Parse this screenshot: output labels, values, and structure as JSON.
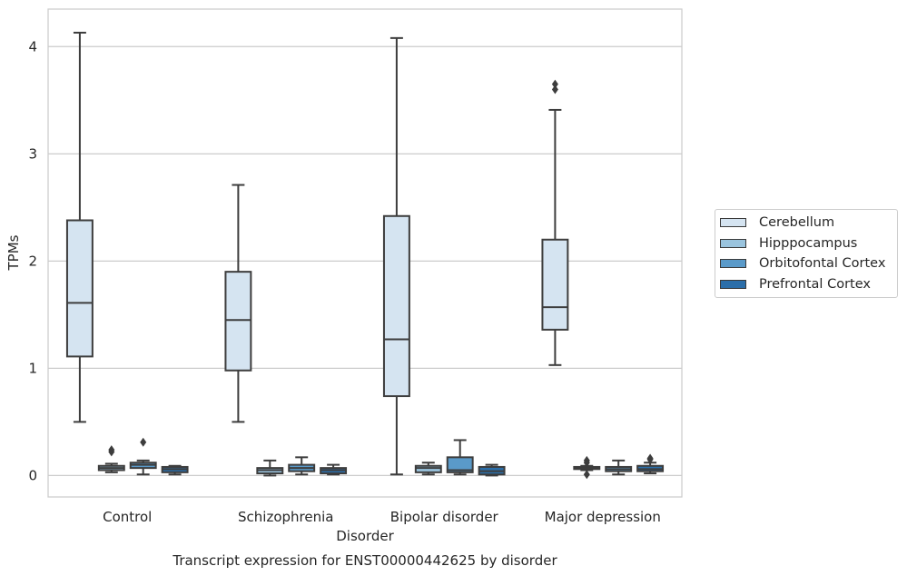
{
  "chart_data": {
    "type": "box",
    "title": "Transcript expression for ENST00000442625 by disorder",
    "xlabel": "Disorder",
    "ylabel": "TPMs",
    "categories": [
      "Control",
      "Schizophrenia",
      "Bipolar disorder",
      "Major depression"
    ],
    "ylim": [
      -0.2,
      4.35
    ],
    "yticks": [
      "0",
      "1",
      "2",
      "3",
      "4"
    ],
    "grid": true,
    "legend_position": "right",
    "series": [
      {
        "name": "Cerebellum",
        "color": "#d5e4f1",
        "boxes": [
          {
            "whislo": 0.5,
            "q1": 1.11,
            "med": 1.61,
            "q3": 2.38,
            "whishi": 4.13,
            "fliers": []
          },
          {
            "whislo": 0.5,
            "q1": 0.98,
            "med": 1.45,
            "q3": 1.9,
            "whishi": 2.71,
            "fliers": []
          },
          {
            "whislo": 0.01,
            "q1": 0.74,
            "med": 1.27,
            "q3": 2.42,
            "whishi": 4.08,
            "fliers": []
          },
          {
            "whislo": 1.03,
            "q1": 1.36,
            "med": 1.57,
            "q3": 2.2,
            "whishi": 3.41,
            "fliers": [
              3.6,
              3.65
            ]
          }
        ]
      },
      {
        "name": "Hipppocampus",
        "color": "#9ac4de",
        "boxes": [
          {
            "whislo": 0.03,
            "q1": 0.05,
            "med": 0.07,
            "q3": 0.09,
            "whishi": 0.11,
            "fliers": [
              0.22,
              0.24
            ]
          },
          {
            "whislo": 0.0,
            "q1": 0.02,
            "med": 0.05,
            "q3": 0.07,
            "whishi": 0.14,
            "fliers": []
          },
          {
            "whislo": 0.01,
            "q1": 0.03,
            "med": 0.07,
            "q3": 0.09,
            "whishi": 0.12,
            "fliers": []
          },
          {
            "whislo": 0.05,
            "q1": 0.06,
            "med": 0.07,
            "q3": 0.08,
            "whishi": 0.09,
            "fliers": [
              0.01,
              0.12,
              0.14
            ]
          }
        ]
      },
      {
        "name": "Orbitofontal Cortex",
        "color": "#5a9ac9",
        "boxes": [
          {
            "whislo": 0.01,
            "q1": 0.07,
            "med": 0.1,
            "q3": 0.12,
            "whishi": 0.14,
            "fliers": [
              0.31
            ]
          },
          {
            "whislo": 0.01,
            "q1": 0.04,
            "med": 0.07,
            "q3": 0.1,
            "whishi": 0.17,
            "fliers": []
          },
          {
            "whislo": 0.01,
            "q1": 0.03,
            "med": 0.05,
            "q3": 0.17,
            "whishi": 0.33,
            "fliers": []
          },
          {
            "whislo": 0.01,
            "q1": 0.04,
            "med": 0.06,
            "q3": 0.08,
            "whishi": 0.14,
            "fliers": []
          }
        ]
      },
      {
        "name": "Prefrontal Cortex",
        "color": "#2b6ea9",
        "boxes": [
          {
            "whislo": 0.01,
            "q1": 0.03,
            "med": 0.06,
            "q3": 0.08,
            "whishi": 0.09,
            "fliers": []
          },
          {
            "whislo": 0.01,
            "q1": 0.02,
            "med": 0.05,
            "q3": 0.07,
            "whishi": 0.1,
            "fliers": []
          },
          {
            "whislo": 0.0,
            "q1": 0.01,
            "med": 0.04,
            "q3": 0.08,
            "whishi": 0.1,
            "fliers": []
          },
          {
            "whislo": 0.02,
            "q1": 0.04,
            "med": 0.06,
            "q3": 0.09,
            "whishi": 0.12,
            "fliers": [
              0.15,
              0.16
            ]
          }
        ]
      }
    ]
  }
}
